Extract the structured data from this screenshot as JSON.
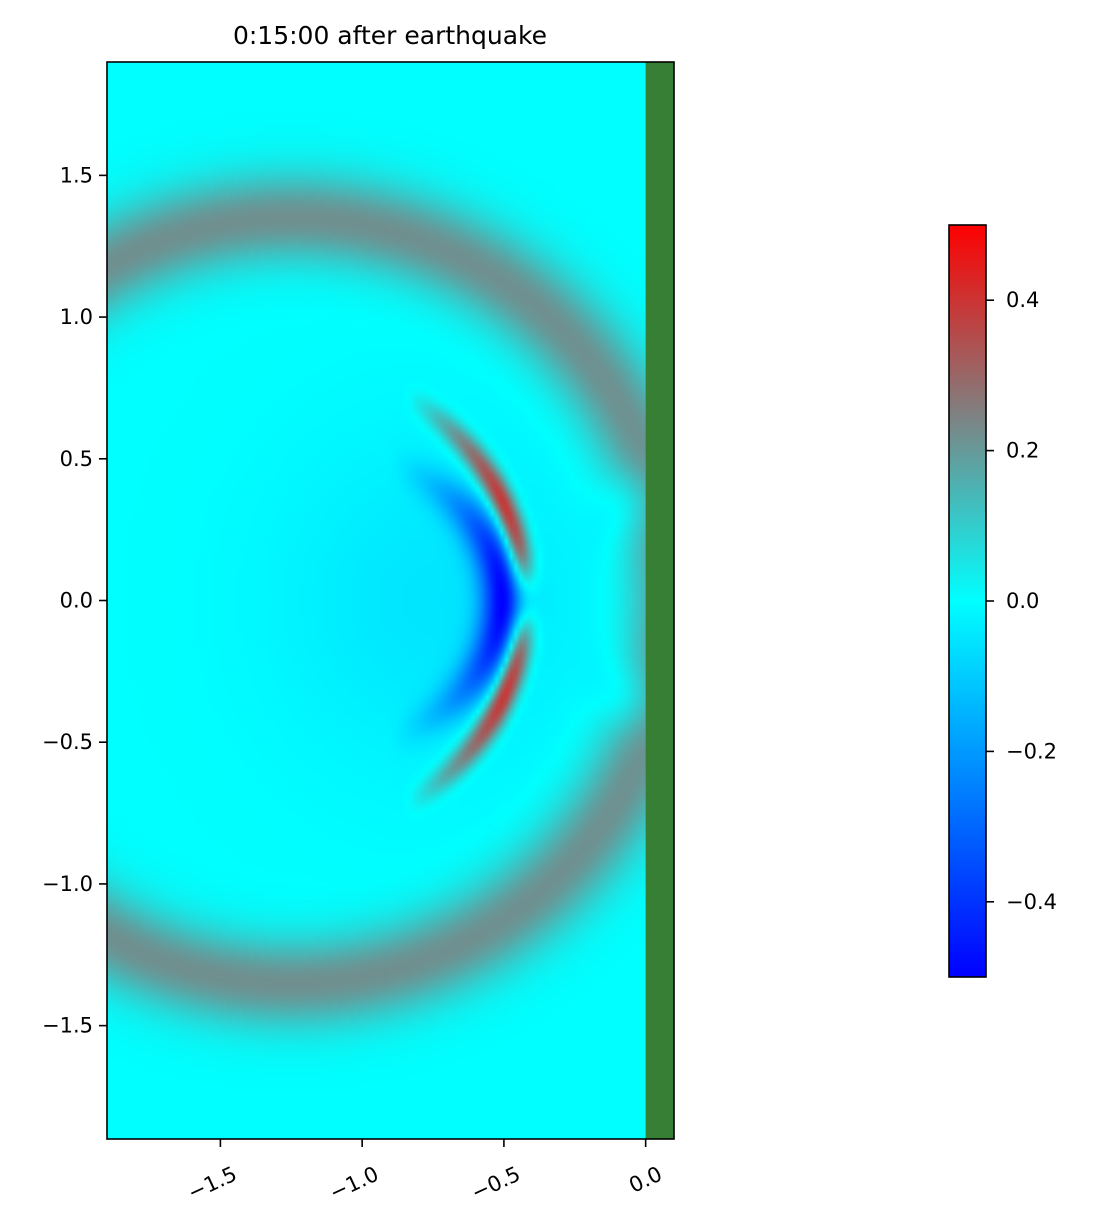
{
  "chart_data": {
    "type": "heatmap",
    "title": "0:15:00 after earthquake",
    "xlabel": "",
    "ylabel": "",
    "xlim": [
      -1.9,
      0.1
    ],
    "ylim": [
      -1.9,
      1.9
    ],
    "x_ticks": [
      {
        "value": -1.5,
        "label": "−1.5"
      },
      {
        "value": -1.0,
        "label": "−1.0"
      },
      {
        "value": -0.5,
        "label": "−0.5"
      },
      {
        "value": 0.0,
        "label": "0.0"
      }
    ],
    "y_ticks": [
      {
        "value": 1.5,
        "label": "1.5"
      },
      {
        "value": 1.0,
        "label": "1.0"
      },
      {
        "value": 0.5,
        "label": "0.5"
      },
      {
        "value": 0.0,
        "label": "0.0"
      },
      {
        "value": -0.5,
        "label": "−0.5"
      },
      {
        "value": -1.0,
        "label": "−1.0"
      },
      {
        "value": -1.5,
        "label": "−1.5"
      }
    ],
    "grid": false,
    "land_boundary_x": 0.0,
    "land_color": "#367f35",
    "colorbar": {
      "range": [
        -0.5,
        0.5
      ],
      "ticks": [
        {
          "value": 0.4,
          "label": "0.4"
        },
        {
          "value": 0.2,
          "label": "0.2"
        },
        {
          "value": 0.0,
          "label": "0.0"
        },
        {
          "value": -0.2,
          "label": "−0.2"
        },
        {
          "value": -0.4,
          "label": "−0.4"
        }
      ],
      "colors": [
        {
          "value": -0.5,
          "color": "#0000ff"
        },
        {
          "value": -0.25,
          "color": "#0080ff"
        },
        {
          "value": 0.0,
          "color": "#00ffff"
        },
        {
          "value": 0.25,
          "color": "#808080"
        },
        {
          "value": 0.5,
          "color": "#ff0000"
        }
      ]
    },
    "features": [
      {
        "name": "outer-wave-ring",
        "center_x": -1.25,
        "center_y": 0.0,
        "radius": 1.35,
        "amplitude": 0.22
      },
      {
        "name": "inner-wave-crest",
        "center_x": -1.25,
        "center_y": 0.0,
        "radius": 0.82,
        "amplitude": 0.45
      },
      {
        "name": "wave-trough",
        "center_x": -1.25,
        "center_y": 0.0,
        "radius": 0.74,
        "amplitude": -0.48
      },
      {
        "name": "coastal-depression",
        "center_x": 0.0,
        "center_y": 0.0,
        "radius": 0.35,
        "amplitude": -0.08
      }
    ]
  }
}
